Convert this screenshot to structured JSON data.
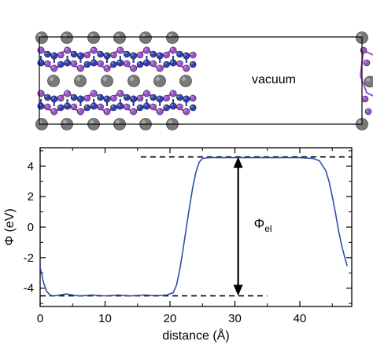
{
  "structure": {
    "vacuum_label": "vacuum",
    "colors": {
      "metal_atom": "#7a7a7a",
      "chalcogen_atom": "#9b4fd1",
      "pnictogen_atom": "#2f3fb5",
      "cell_frame": "#000000"
    }
  },
  "chart_data": {
    "type": "line",
    "title": "",
    "xlabel": "distance (Å)",
    "ylabel_main": "Φ",
    "ylabel_unit": " (eV)",
    "xlim": [
      0,
      48
    ],
    "ylim": [
      -5.2,
      5.2
    ],
    "xticks": [
      0,
      10,
      20,
      30,
      40
    ],
    "yticks": [
      -4,
      -2,
      0,
      2,
      4
    ],
    "minor_xstep": 5,
    "minor_ystep": 1,
    "series": [
      {
        "color": "#2f4fa8",
        "points": [
          [
            0,
            -2.6
          ],
          [
            0.5,
            -3.6
          ],
          [
            1,
            -4.2
          ],
          [
            1.5,
            -4.45
          ],
          [
            2,
            -4.5
          ],
          [
            3,
            -4.45
          ],
          [
            4,
            -4.38
          ],
          [
            5,
            -4.45
          ],
          [
            6,
            -4.5
          ],
          [
            8,
            -4.45
          ],
          [
            10,
            -4.5
          ],
          [
            12,
            -4.45
          ],
          [
            14,
            -4.5
          ],
          [
            16,
            -4.45
          ],
          [
            18,
            -4.48
          ],
          [
            19.5,
            -4.45
          ],
          [
            20.5,
            -4.3
          ],
          [
            21,
            -3.8
          ],
          [
            21.5,
            -2.8
          ],
          [
            22,
            -1.5
          ],
          [
            22.5,
            -0.1
          ],
          [
            23,
            1.3
          ],
          [
            23.5,
            2.6
          ],
          [
            24,
            3.6
          ],
          [
            24.5,
            4.25
          ],
          [
            25,
            4.5
          ],
          [
            26,
            4.55
          ],
          [
            30,
            4.55
          ],
          [
            35,
            4.55
          ],
          [
            40,
            4.55
          ],
          [
            42,
            4.5
          ],
          [
            43,
            4.35
          ],
          [
            44,
            3.7
          ],
          [
            44.5,
            3.0
          ],
          [
            45,
            2.0
          ],
          [
            45.5,
            0.9
          ],
          [
            46,
            -0.3
          ],
          [
            46.5,
            -1.3
          ],
          [
            47,
            -2.1
          ],
          [
            47.3,
            -2.55
          ]
        ]
      }
    ],
    "reference_lines": [
      {
        "y": 4.6,
        "x": [
          15.5,
          48.5
        ],
        "style": "dashed"
      },
      {
        "y": -4.5,
        "x": [
          0,
          35
        ],
        "style": "dashed"
      }
    ],
    "annotation": {
      "x": 30.5,
      "y_from": -4.5,
      "y_to": 4.6,
      "label_main": "Φ",
      "label_sub": "el"
    }
  }
}
